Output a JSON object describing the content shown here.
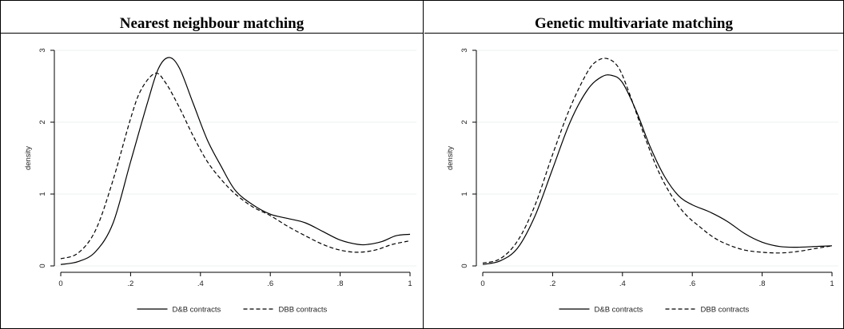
{
  "chart_data": [
    {
      "type": "line",
      "title": "Nearest neighbour matching",
      "ylabel": "density",
      "xlabel": "",
      "xlim": [
        0,
        1
      ],
      "ylim": [
        0,
        3
      ],
      "x_ticks": [
        0,
        0.2,
        0.4,
        0.6,
        0.8,
        1
      ],
      "x_tick_labels": [
        "0",
        ".2",
        ".4",
        ".6",
        ".8",
        "1"
      ],
      "y_ticks": [
        0,
        1,
        2,
        3
      ],
      "y_tick_labels": [
        "0",
        "1",
        "2",
        "3"
      ],
      "grid": "horizontal",
      "legend_position": "bottom",
      "series": [
        {
          "name": "D&B contracts",
          "style": "solid",
          "x": [
            0,
            0.05,
            0.1,
            0.15,
            0.2,
            0.25,
            0.28,
            0.31,
            0.34,
            0.38,
            0.42,
            0.46,
            0.5,
            0.55,
            0.6,
            0.65,
            0.7,
            0.75,
            0.8,
            0.85,
            0.88,
            0.92,
            0.96,
            1
          ],
          "y": [
            0.02,
            0.06,
            0.2,
            0.6,
            1.45,
            2.3,
            2.75,
            2.9,
            2.75,
            2.25,
            1.75,
            1.38,
            1.05,
            0.85,
            0.72,
            0.66,
            0.6,
            0.48,
            0.36,
            0.3,
            0.3,
            0.34,
            0.42,
            0.44
          ]
        },
        {
          "name": "DBB contracts",
          "style": "dashed",
          "x": [
            0,
            0.05,
            0.1,
            0.15,
            0.2,
            0.23,
            0.27,
            0.3,
            0.34,
            0.38,
            0.42,
            0.46,
            0.5,
            0.55,
            0.6,
            0.65,
            0.7,
            0.75,
            0.8,
            0.85,
            0.9,
            0.95,
            1
          ],
          "y": [
            0.1,
            0.18,
            0.5,
            1.2,
            2.05,
            2.45,
            2.68,
            2.55,
            2.2,
            1.8,
            1.45,
            1.2,
            1.0,
            0.82,
            0.7,
            0.55,
            0.42,
            0.3,
            0.22,
            0.19,
            0.22,
            0.3,
            0.35
          ]
        }
      ]
    },
    {
      "type": "line",
      "title": "Genetic multivariate matching",
      "ylabel": "density",
      "xlabel": "",
      "xlim": [
        0,
        1
      ],
      "ylim": [
        0,
        3
      ],
      "x_ticks": [
        0,
        0.2,
        0.4,
        0.6,
        0.8,
        1
      ],
      "x_tick_labels": [
        "0",
        ".2",
        ".4",
        ".6",
        ".8",
        "1"
      ],
      "y_ticks": [
        0,
        1,
        2,
        3
      ],
      "y_tick_labels": [
        "0",
        "1",
        "2",
        "3"
      ],
      "grid": "horizontal",
      "legend_position": "bottom",
      "series": [
        {
          "name": "D&B contracts",
          "style": "solid",
          "x": [
            0,
            0.05,
            0.1,
            0.15,
            0.2,
            0.25,
            0.3,
            0.34,
            0.37,
            0.4,
            0.44,
            0.48,
            0.52,
            0.56,
            0.6,
            0.65,
            0.7,
            0.75,
            0.8,
            0.85,
            0.9,
            0.95,
            1
          ],
          "y": [
            0.02,
            0.07,
            0.25,
            0.7,
            1.35,
            2.0,
            2.45,
            2.63,
            2.65,
            2.55,
            2.15,
            1.65,
            1.25,
            0.98,
            0.85,
            0.75,
            0.62,
            0.45,
            0.33,
            0.27,
            0.26,
            0.27,
            0.28
          ]
        },
        {
          "name": "DBB contracts",
          "style": "dashed",
          "x": [
            0,
            0.05,
            0.1,
            0.15,
            0.2,
            0.25,
            0.3,
            0.33,
            0.36,
            0.39,
            0.42,
            0.46,
            0.5,
            0.54,
            0.58,
            0.62,
            0.66,
            0.7,
            0.75,
            0.8,
            0.85,
            0.9,
            0.95,
            1
          ],
          "y": [
            0.04,
            0.1,
            0.35,
            0.85,
            1.55,
            2.2,
            2.7,
            2.86,
            2.88,
            2.75,
            2.4,
            1.85,
            1.35,
            0.98,
            0.72,
            0.55,
            0.4,
            0.3,
            0.22,
            0.19,
            0.18,
            0.2,
            0.24,
            0.28
          ]
        }
      ]
    }
  ],
  "colors": {
    "line": "#000000",
    "grid": "#eef0f2",
    "axis": "#000000",
    "frame": "#000000",
    "background": "#ffffff"
  }
}
